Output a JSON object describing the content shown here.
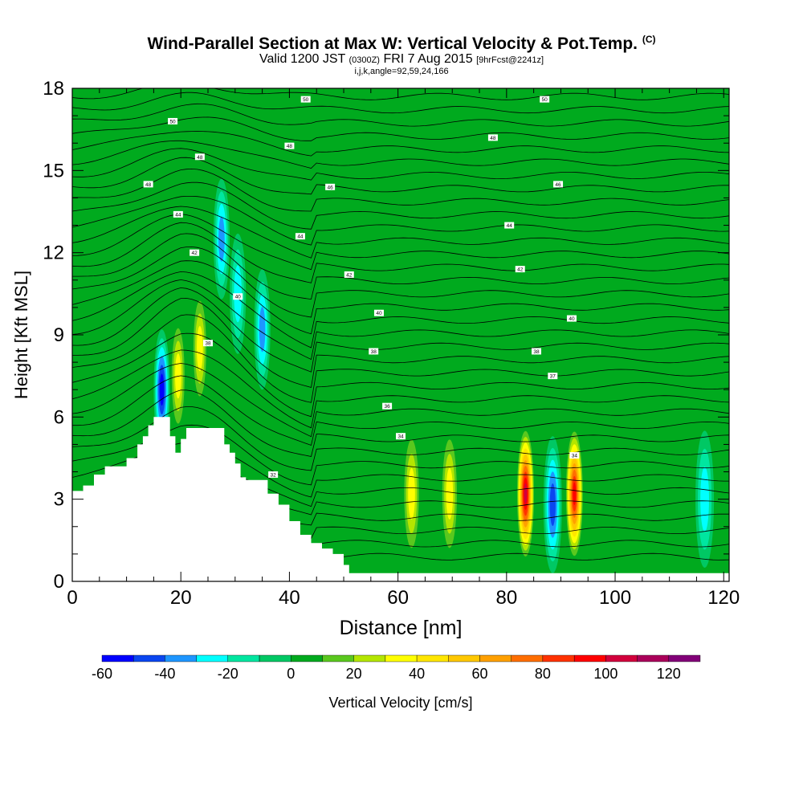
{
  "title": {
    "main": "Wind-Parallel Section at Max W: Vertical Velocity & Pot.Temp.",
    "copyright": "(C)",
    "valid_prefix": "Valid 1200 JST",
    "valid_utc": "(0300Z)",
    "valid_date": "FRI 7 Aug 2015",
    "forecast_tag": "[9hrFcst@2241z]",
    "indices": "i,j,k,angle=92,59,24,166"
  },
  "chart_data": {
    "type": "heatmap",
    "xlabel": "Distance [nm]",
    "ylabel": "Height [Kft MSL]",
    "xlim": [
      0,
      121
    ],
    "ylim": [
      0,
      18
    ],
    "x_ticks": [
      "0",
      "20",
      "40",
      "60",
      "80",
      "100",
      "120"
    ],
    "y_ticks": [
      "0",
      "3",
      "6",
      "9",
      "12",
      "15",
      "18"
    ],
    "colorbar": {
      "label": "Vertical Velocity [cm/s]",
      "ticks": [
        "-60",
        "-40",
        "-20",
        "0",
        "20",
        "40",
        "60",
        "80",
        "100",
        "120"
      ],
      "levels": [
        -60,
        -50,
        -40,
        -30,
        -20,
        -10,
        0,
        10,
        20,
        30,
        40,
        50,
        60,
        70,
        80,
        90,
        100,
        110,
        120,
        130
      ],
      "colors": [
        "#0000ff",
        "#0a46f0",
        "#1e96ff",
        "#00ffff",
        "#00e6a0",
        "#00c864",
        "#00aa1e",
        "#5ac81e",
        "#b4e600",
        "#ffff00",
        "#ffe600",
        "#ffc800",
        "#ffa000",
        "#ff6e00",
        "#ff3200",
        "#ff0000",
        "#d2003c",
        "#aa005a",
        "#820078"
      ]
    },
    "terrain_profile": [
      [
        0,
        3.3
      ],
      [
        2,
        3.5
      ],
      [
        4,
        3.9
      ],
      [
        6,
        4.2
      ],
      [
        10,
        4.5
      ],
      [
        12,
        5.0
      ],
      [
        13,
        5.3
      ],
      [
        14,
        5.7
      ],
      [
        15,
        6.0
      ],
      [
        17,
        6.0
      ],
      [
        18,
        5.3
      ],
      [
        19,
        4.7
      ],
      [
        20,
        5.2
      ],
      [
        21,
        5.6
      ],
      [
        24,
        5.6
      ],
      [
        27,
        5.6
      ],
      [
        28,
        5.0
      ],
      [
        29,
        4.7
      ],
      [
        30,
        4.3
      ],
      [
        31,
        3.8
      ],
      [
        32,
        3.7
      ],
      [
        35,
        3.7
      ],
      [
        36,
        3.2
      ],
      [
        38,
        2.8
      ],
      [
        40,
        2.2
      ],
      [
        42,
        1.7
      ],
      [
        44,
        1.4
      ],
      [
        46,
        1.2
      ],
      [
        48,
        1.0
      ],
      [
        50,
        0.6
      ],
      [
        51,
        0.3
      ]
    ],
    "pot_temp_labels": [
      {
        "x": 18.5,
        "y": 16.8,
        "label": "50"
      },
      {
        "x": 14,
        "y": 14.5,
        "label": "48"
      },
      {
        "x": 23.5,
        "y": 15.5,
        "label": "48"
      },
      {
        "x": 19.5,
        "y": 13.4,
        "label": "44"
      },
      {
        "x": 22.5,
        "y": 12.0,
        "label": "42"
      },
      {
        "x": 43,
        "y": 17.6,
        "label": "50"
      },
      {
        "x": 40,
        "y": 15.9,
        "label": "48"
      },
      {
        "x": 47.5,
        "y": 14.4,
        "label": "46"
      },
      {
        "x": 42,
        "y": 12.6,
        "label": "44"
      },
      {
        "x": 51,
        "y": 11.2,
        "label": "42"
      },
      {
        "x": 56.5,
        "y": 9.8,
        "label": "40"
      },
      {
        "x": 55.5,
        "y": 8.4,
        "label": "38"
      },
      {
        "x": 58,
        "y": 6.4,
        "label": "36"
      },
      {
        "x": 60.5,
        "y": 5.3,
        "label": "34"
      },
      {
        "x": 37,
        "y": 3.9,
        "label": "32"
      },
      {
        "x": 25,
        "y": 8.7,
        "label": "38"
      },
      {
        "x": 30.5,
        "y": 10.4,
        "label": "40"
      },
      {
        "x": 87,
        "y": 17.6,
        "label": "50"
      },
      {
        "x": 77.5,
        "y": 16.2,
        "label": "48"
      },
      {
        "x": 89.5,
        "y": 14.5,
        "label": "46"
      },
      {
        "x": 80.5,
        "y": 13.0,
        "label": "44"
      },
      {
        "x": 82.5,
        "y": 11.4,
        "label": "42"
      },
      {
        "x": 92,
        "y": 9.6,
        "label": "40"
      },
      {
        "x": 85.5,
        "y": 8.4,
        "label": "38"
      },
      {
        "x": 88.5,
        "y": 7.5,
        "label": "37"
      },
      {
        "x": 92.5,
        "y": 4.6,
        "label": "34"
      }
    ],
    "updraft_cores": [
      {
        "x": 16.5,
        "y": 7.0,
        "w": -62
      },
      {
        "x": 19.5,
        "y": 7.5,
        "w": 40
      },
      {
        "x": 23.5,
        "y": 8.5,
        "w": 48
      },
      {
        "x": 27.5,
        "y": 12.5,
        "w": -45
      },
      {
        "x": 30.5,
        "y": 10.5,
        "w": -30
      },
      {
        "x": 35.0,
        "y": 9.2,
        "w": -45
      },
      {
        "x": 62.5,
        "y": 3.2,
        "w": 45
      },
      {
        "x": 69.5,
        "y": 3.2,
        "w": 40
      },
      {
        "x": 79.5,
        "y": 2.8,
        "w": 15
      },
      {
        "x": 83.5,
        "y": 3.2,
        "w": 112
      },
      {
        "x": 88.5,
        "y": 2.8,
        "w": -50
      },
      {
        "x": 92.5,
        "y": 3.2,
        "w": 105
      },
      {
        "x": 116.5,
        "y": 3.0,
        "w": -35
      }
    ]
  }
}
